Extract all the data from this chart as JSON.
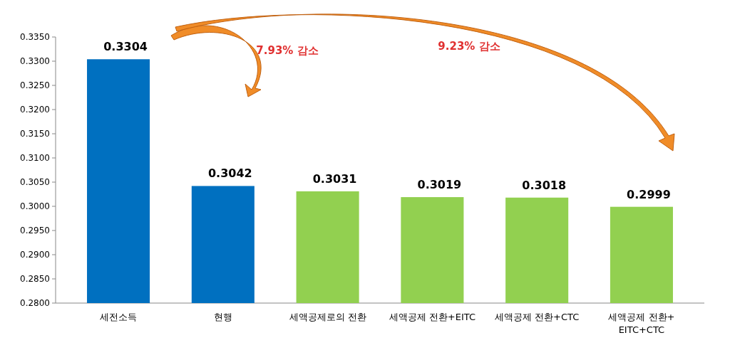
{
  "chart_data": {
    "type": "bar",
    "categories": [
      "세전소득",
      "현행",
      "세액공제로의 전환",
      "세액공제 전환+EITC",
      "세액공제 전환+CTC",
      "세액공제 전환+EITC+CTC"
    ],
    "values": [
      0.3304,
      0.3042,
      0.3031,
      0.3019,
      0.3018,
      0.2999
    ],
    "colors": [
      "#0070c0",
      "#0070c0",
      "#92d050",
      "#92d050",
      "#92d050",
      "#92d050"
    ],
    "ylim": [
      0.28,
      0.335
    ],
    "yticks": [
      {
        "value": 0.28,
        "label": "0.2800"
      },
      {
        "value": 0.285,
        "label": "0.2850"
      },
      {
        "value": 0.29,
        "label": "0.2900"
      },
      {
        "value": 0.295,
        "label": "0.2950"
      },
      {
        "value": 0.3,
        "label": "0.3000"
      },
      {
        "value": 0.305,
        "label": "0.3050"
      },
      {
        "value": 0.31,
        "label": "0.3100"
      },
      {
        "value": 0.315,
        "label": "0.3150"
      },
      {
        "value": 0.32,
        "label": "0.3200"
      },
      {
        "value": 0.325,
        "label": "0.3250"
      },
      {
        "value": 0.33,
        "label": "0.3300"
      },
      {
        "value": 0.335,
        "label": "0.3350"
      }
    ],
    "data_labels": true,
    "annotations": [
      "7.93% 감소",
      "9.23% 감소"
    ]
  }
}
